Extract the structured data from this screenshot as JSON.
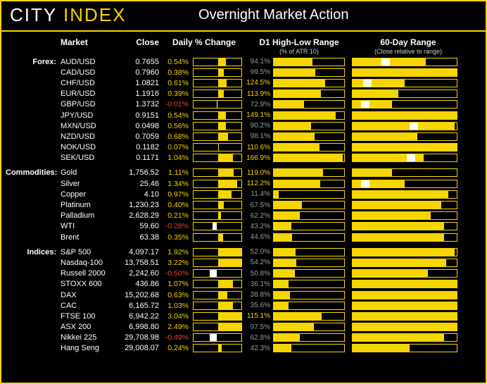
{
  "logo": {
    "part1": "CITY",
    "part2": "INDEX"
  },
  "title": "Overnight Market Action",
  "columns": {
    "market": "Market",
    "close": "Close",
    "daily": "Daily % Change",
    "d1": "D1 High-Low Range",
    "d1_sub": "(% of ATR 10)",
    "range60": "60-Day Range",
    "range60_sub": "(Close relative to range)"
  },
  "style": {
    "accent": "#f7d500",
    "bg": "#000000",
    "text": "#ffffff",
    "muted": "#999999",
    "neg": "#dd4433",
    "d1_threshold": 100,
    "daily_scale": 3.5,
    "d1_scale": 170,
    "font_size_row": 11
  },
  "categories": [
    {
      "label": "Forex:",
      "rows": [
        {
          "m": "AUD/USD",
          "close": "0.7655",
          "pct": 0.54,
          "d1": 94.1,
          "r60_fill": 70,
          "r60_mark": 28
        },
        {
          "m": "CAD/USD",
          "close": "0.7960",
          "pct": 0.38,
          "d1": 99.5,
          "r60_fill": 100,
          "r60_mark": null
        },
        {
          "m": "CHF/USD",
          "close": "1.0821",
          "pct": 0.61,
          "d1": 124.5,
          "r60_fill": 50,
          "r60_mark": 10
        },
        {
          "m": "EUR/USD",
          "close": "1.1916",
          "pct": 0.39,
          "d1": 113.9,
          "r60_fill": 44,
          "r60_mark": null
        },
        {
          "m": "GBP/USD",
          "close": "1.3732",
          "pct": -0.01,
          "d1": 72.9,
          "r60_fill": 38,
          "r60_mark": 8
        },
        {
          "m": "JPY/USD",
          "close": "0.9151",
          "pct": 0.54,
          "d1": 149.1,
          "r60_fill": 100,
          "r60_mark": null
        },
        {
          "m": "MXN/USD",
          "close": "0.0498",
          "pct": 0.56,
          "d1": 90.2,
          "r60_fill": 98,
          "r60_mark": 55
        },
        {
          "m": "NZD/USD",
          "close": "0.7059",
          "pct": 0.68,
          "d1": 98.1,
          "r60_fill": 62,
          "r60_mark": null
        },
        {
          "m": "NOK/USD",
          "close": "0.1182",
          "pct": 0.07,
          "d1": 110.6,
          "r60_fill": 100,
          "r60_mark": null
        },
        {
          "m": "SEK/USD",
          "close": "0.1171",
          "pct": 1.04,
          "d1": 166.9,
          "r60_fill": 68,
          "r60_mark": 52
        }
      ]
    },
    {
      "label": "Commodities:",
      "rows": [
        {
          "m": "Gold",
          "close": "1,756.52",
          "pct": 1.11,
          "d1": 119.0,
          "r60_fill": 38,
          "r60_mark": null
        },
        {
          "m": "Silver",
          "close": "25.46",
          "pct": 1.34,
          "d1": 112.2,
          "r60_fill": 50,
          "r60_mark": 8
        },
        {
          "m": "Copper",
          "close": "4.10",
          "pct": 0.97,
          "d1": 11.4,
          "r60_fill": 92,
          "r60_mark": null
        },
        {
          "m": "Platinum",
          "close": "1,230.23",
          "pct": 0.4,
          "d1": 67.5,
          "r60_fill": 85,
          "r60_mark": null
        },
        {
          "m": "Palladium",
          "close": "2,628.29",
          "pct": 0.21,
          "d1": 62.2,
          "r60_fill": 75,
          "r60_mark": null
        },
        {
          "m": "WTI",
          "close": "59.60",
          "pct": -0.28,
          "d1": 43.2,
          "r60_fill": 88,
          "r60_mark": null
        },
        {
          "m": "Brent",
          "close": "63.38",
          "pct": 0.35,
          "d1": 44.6,
          "r60_fill": 88,
          "r60_mark": null
        }
      ]
    },
    {
      "label": "Indices:",
      "rows": [
        {
          "m": "S&P 500",
          "close": "4,097.17",
          "pct": 1.92,
          "d1": 52.0,
          "r60_fill": 98,
          "r60_mark": null
        },
        {
          "m": "Nasdaq-100",
          "close": "13,758.51",
          "pct": 3.22,
          "d1": 54.2,
          "r60_fill": 90,
          "r60_mark": null
        },
        {
          "m": "Russell 2000",
          "close": "2,242.60",
          "pct": -0.5,
          "d1": 50.8,
          "r60_fill": 72,
          "r60_mark": null
        },
        {
          "m": "STOXX 600",
          "close": "436.86",
          "pct": 1.07,
          "d1": 36.1,
          "r60_fill": 100,
          "r60_mark": null
        },
        {
          "m": "DAX",
          "close": "15,202.68",
          "pct": 0.63,
          "d1": 38.8,
          "r60_fill": 100,
          "r60_mark": null
        },
        {
          "m": "CAC",
          "close": "6,165.72",
          "pct": 1.03,
          "d1": 35.6,
          "r60_fill": 100,
          "r60_mark": null
        },
        {
          "m": "FTSE 100",
          "close": "6,942.22",
          "pct": 3.04,
          "d1": 115.1,
          "r60_fill": 100,
          "r60_mark": null
        },
        {
          "m": "ASX 200",
          "close": "6,998.80",
          "pct": 2.49,
          "d1": 97.5,
          "r60_fill": 100,
          "r60_mark": null
        },
        {
          "m": "Nikkei 225",
          "close": "29,708.98",
          "pct": -0.49,
          "d1": 62.8,
          "r60_fill": 88,
          "r60_mark": null
        },
        {
          "m": "Hang Seng",
          "close": "29,008.07",
          "pct": 0.24,
          "d1": 42.3,
          "r60_fill": 55,
          "r60_mark": null
        }
      ]
    }
  ]
}
